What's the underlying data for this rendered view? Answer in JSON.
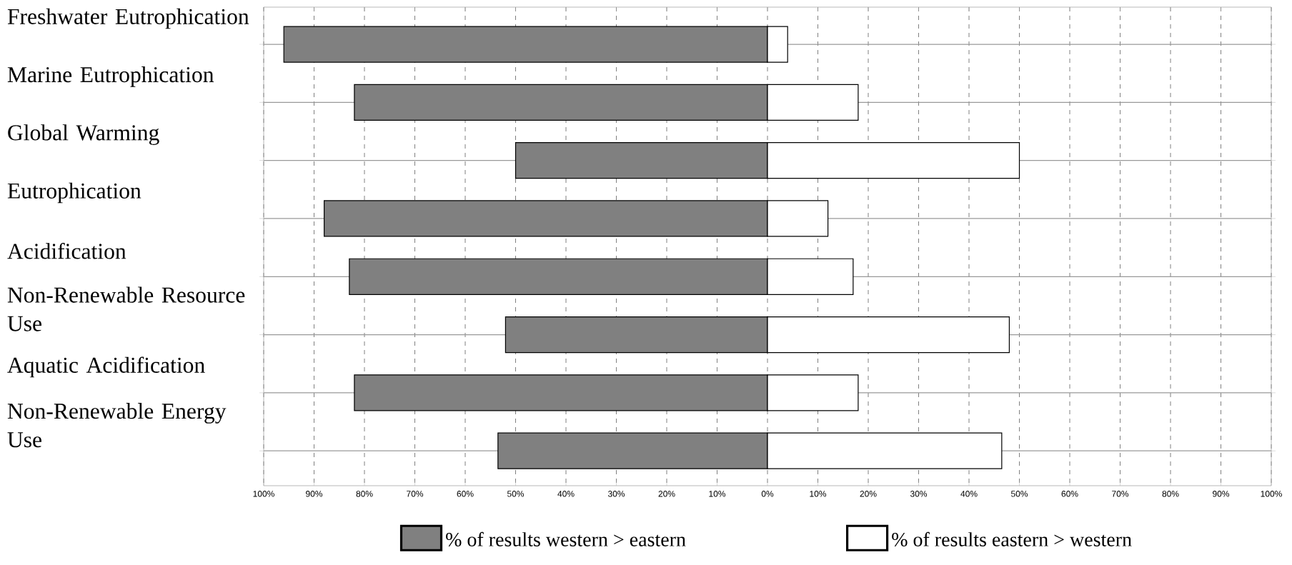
{
  "chart_data": {
    "type": "bar",
    "orientation": "horizontal",
    "categories": [
      "Freshwater Eutrophication",
      "Marine Eutrophication",
      "Global Warming",
      "Eutrophication",
      "Acidification",
      "Non-Renewable Resource Use",
      "Aquatic Acidification",
      "Non-Renewable Energy Use"
    ],
    "series": [
      {
        "name": "% of results western > eastern",
        "color": "#808080",
        "values": [
          -96,
          -82,
          -50,
          -88,
          -83,
          -52,
          -82,
          -53.5
        ]
      },
      {
        "name": "% of results eastern > western",
        "color": "#ffffff",
        "values": [
          4,
          18,
          50,
          12,
          17,
          48,
          18,
          46.5
        ]
      }
    ],
    "xlim": [
      -100,
      100
    ],
    "xticks": [
      {
        "value": -100,
        "label": "100%"
      },
      {
        "value": -90,
        "label": "90%"
      },
      {
        "value": -80,
        "label": "80%"
      },
      {
        "value": -70,
        "label": "70%"
      },
      {
        "value": -60,
        "label": "60%"
      },
      {
        "value": -50,
        "label": "50%"
      },
      {
        "value": -40,
        "label": "40%"
      },
      {
        "value": -30,
        "label": "30%"
      },
      {
        "value": -20,
        "label": "20%"
      },
      {
        "value": -10,
        "label": "10%"
      },
      {
        "value": 0,
        "label": "0%"
      },
      {
        "value": 10,
        "label": "10%"
      },
      {
        "value": 20,
        "label": "20%"
      },
      {
        "value": 30,
        "label": "30%"
      },
      {
        "value": 40,
        "label": "40%"
      },
      {
        "value": 50,
        "label": "50%"
      },
      {
        "value": 60,
        "label": "60%"
      },
      {
        "value": 70,
        "label": "70%"
      },
      {
        "value": 80,
        "label": "80%"
      },
      {
        "value": 90,
        "label": "90%"
      },
      {
        "value": 100,
        "label": "100%"
      }
    ],
    "stacked": true,
    "grid": true,
    "legend": "bottom"
  }
}
